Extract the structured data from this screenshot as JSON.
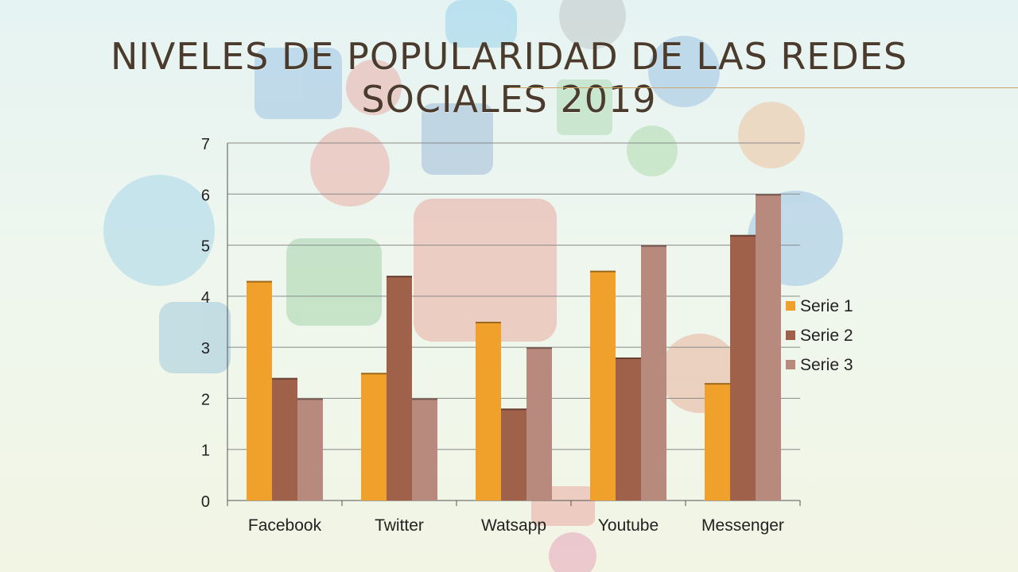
{
  "slide": {
    "title": "NIVELES DE POPULARIDAD DE LAS REDES SOCIALES 2019",
    "background_icons": [
      "skype-icon",
      "apple-icon",
      "twitter-icon",
      "youtube-icon",
      "google-plus-icon",
      "blogger-icon",
      "wordpress-icon",
      "reddit-icon",
      "behance-icon",
      "meetup-icon",
      "flickr-icon",
      "myspace-icon",
      "share-icon"
    ]
  },
  "chart_data": {
    "type": "bar",
    "categories": [
      "Facebook",
      "Twitter",
      "Watsapp",
      "Youtube",
      "Messenger"
    ],
    "series": [
      {
        "name": "Serie 1",
        "values": [
          4.3,
          2.5,
          3.5,
          4.5,
          2.3
        ],
        "color": "#f0a12c"
      },
      {
        "name": "Serie 2",
        "values": [
          2.4,
          4.4,
          1.8,
          2.8,
          5.2
        ],
        "color": "#a0614a"
      },
      {
        "name": "Serie 3",
        "values": [
          2.0,
          2.0,
          3.0,
          5.0,
          6.0
        ],
        "color": "#b88a7e"
      }
    ],
    "ylim": [
      0,
      7
    ],
    "yticks": [
      0,
      1,
      2,
      3,
      4,
      5,
      6,
      7
    ],
    "grid": true,
    "legend": "right"
  }
}
